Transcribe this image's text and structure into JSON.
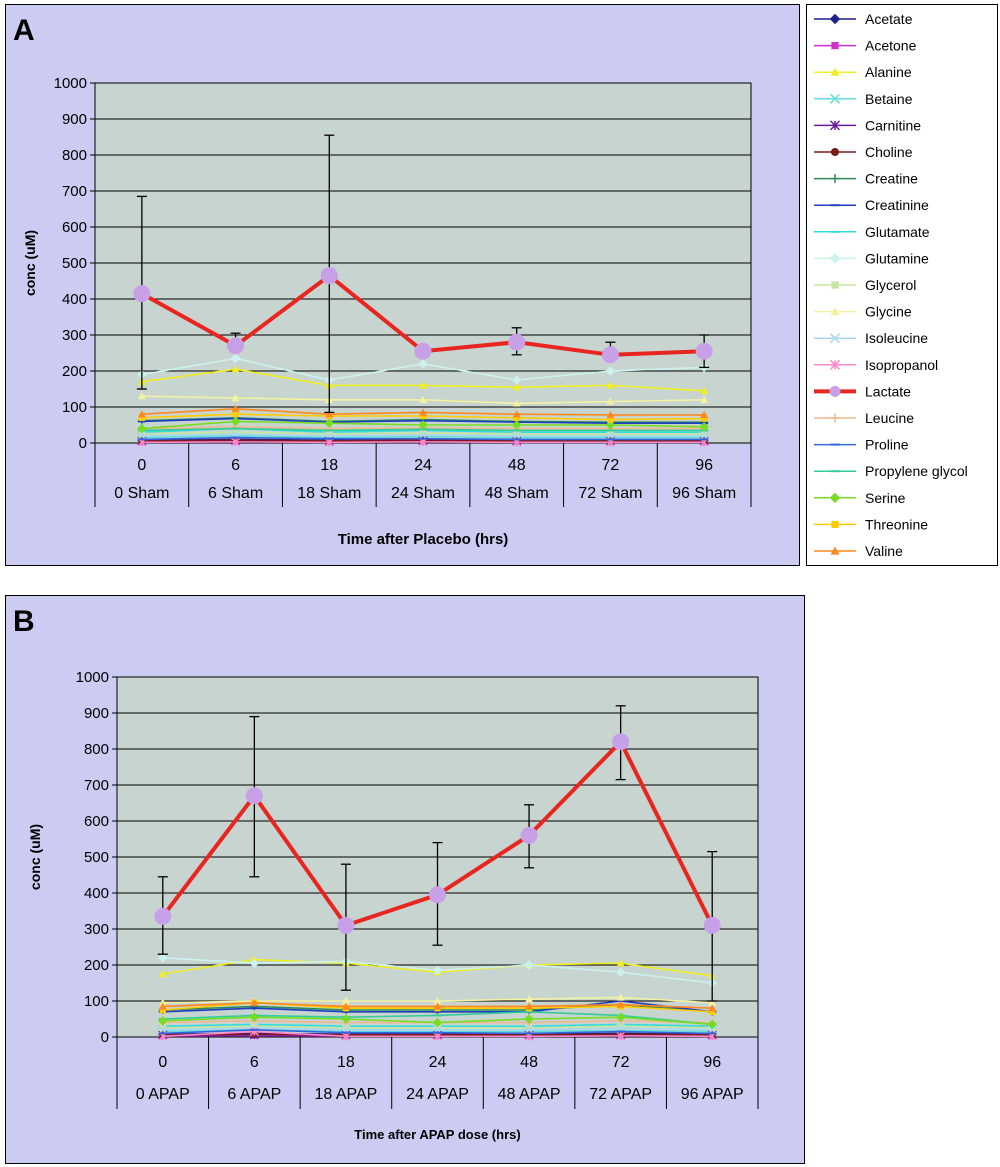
{
  "chart_data": [
    {
      "type": "line",
      "panel_label": "A",
      "ylabel": "conc (uM)",
      "xlabel": "Time after Placebo (hrs)",
      "ylim": [
        0,
        1000
      ],
      "y_ticks": [
        0,
        100,
        200,
        300,
        400,
        500,
        600,
        700,
        800,
        900,
        1000
      ],
      "x": [
        "0",
        "6",
        "18",
        "24",
        "48",
        "72",
        "96"
      ],
      "x_group_labels": [
        "0 Sham",
        "6 Sham",
        "18 Sham",
        "24 Sham",
        "48 Sham",
        "72 Sham",
        "96 Sham"
      ],
      "grid": true,
      "series": [
        {
          "name": "Acetate",
          "values": [
            8,
            10,
            8,
            10,
            8,
            8,
            8
          ]
        },
        {
          "name": "Acetone",
          "values": [
            3,
            4,
            3,
            4,
            3,
            3,
            3
          ]
        },
        {
          "name": "Alanine",
          "values": [
            170,
            205,
            160,
            160,
            155,
            160,
            145
          ]
        },
        {
          "name": "Betaine",
          "values": [
            15,
            20,
            15,
            18,
            15,
            15,
            15
          ]
        },
        {
          "name": "Carnitine",
          "values": [
            5,
            6,
            5,
            6,
            5,
            5,
            5
          ]
        },
        {
          "name": "Choline",
          "values": [
            6,
            8,
            6,
            8,
            6,
            6,
            6
          ]
        },
        {
          "name": "Creatine",
          "values": [
            62,
            70,
            60,
            65,
            60,
            58,
            58
          ]
        },
        {
          "name": "Creatinine",
          "values": [
            60,
            68,
            58,
            62,
            58,
            55,
            55
          ]
        },
        {
          "name": "Glutamate",
          "values": [
            30,
            40,
            30,
            35,
            30,
            30,
            30
          ]
        },
        {
          "name": "Glutamine",
          "values": [
            190,
            235,
            175,
            220,
            175,
            200,
            210
          ]
        },
        {
          "name": "Glycerol",
          "values": [
            25,
            30,
            25,
            28,
            25,
            25,
            25
          ]
        },
        {
          "name": "Glycine",
          "values": [
            130,
            125,
            120,
            120,
            110,
            115,
            120
          ]
        },
        {
          "name": "Isoleucine",
          "values": [
            20,
            25,
            20,
            22,
            20,
            20,
            20
          ]
        },
        {
          "name": "Isopropanol",
          "values": [
            2,
            3,
            2,
            3,
            2,
            2,
            2
          ]
        },
        {
          "name": "Lactate",
          "values": [
            415,
            270,
            465,
            255,
            280,
            245,
            255
          ]
        },
        {
          "name": "Leucine",
          "values": [
            40,
            45,
            40,
            42,
            40,
            40,
            40
          ]
        },
        {
          "name": "Proline",
          "values": [
            10,
            15,
            12,
            12,
            10,
            10,
            10
          ]
        },
        {
          "name": "Propylene glycol",
          "values": [
            35,
            40,
            35,
            38,
            35,
            35,
            35
          ]
        },
        {
          "name": "Serine",
          "values": [
            40,
            60,
            55,
            50,
            50,
            50,
            45
          ]
        },
        {
          "name": "Threonine",
          "values": [
            70,
            80,
            75,
            75,
            70,
            65,
            68
          ]
        },
        {
          "name": "Valine",
          "values": [
            80,
            95,
            80,
            85,
            80,
            78,
            78
          ]
        }
      ],
      "lactate_error": [
        [
          150,
          685
        ],
        [
          265,
          305
        ],
        [
          85,
          855
        ],
        [
          245,
          265
        ],
        [
          245,
          320
        ],
        [
          235,
          280
        ],
        [
          210,
          300
        ]
      ]
    },
    {
      "type": "line",
      "panel_label": "B",
      "ylabel": "conc (uM)",
      "xlabel": "Time after APAP dose (hrs)",
      "ylim": [
        0,
        1000
      ],
      "y_ticks": [
        0,
        100,
        200,
        300,
        400,
        500,
        600,
        700,
        800,
        900,
        1000
      ],
      "x": [
        "0",
        "6",
        "18",
        "24",
        "48",
        "72",
        "96"
      ],
      "x_group_labels": [
        "0 APAP",
        "6 APAP",
        "18 APAP",
        "24 APAP",
        "48 APAP",
        "72 APAP",
        "96 APAP"
      ],
      "grid": true,
      "series": [
        {
          "name": "Acetate",
          "values": [
            8,
            10,
            8,
            8,
            8,
            10,
            8
          ]
        },
        {
          "name": "Acetone",
          "values": [
            3,
            4,
            3,
            3,
            3,
            4,
            3
          ]
        },
        {
          "name": "Alanine",
          "values": [
            175,
            215,
            205,
            180,
            200,
            205,
            170
          ]
        },
        {
          "name": "Betaine",
          "values": [
            15,
            20,
            15,
            15,
            15,
            18,
            15
          ]
        },
        {
          "name": "Carnitine",
          "values": [
            5,
            6,
            5,
            5,
            5,
            6,
            5
          ]
        },
        {
          "name": "Choline",
          "values": [
            6,
            8,
            6,
            6,
            6,
            8,
            6
          ]
        },
        {
          "name": "Creatine",
          "values": [
            75,
            85,
            75,
            75,
            75,
            90,
            70
          ]
        },
        {
          "name": "Creatinine",
          "values": [
            70,
            80,
            70,
            70,
            70,
            100,
            70
          ]
        },
        {
          "name": "Glutamate",
          "values": [
            30,
            35,
            30,
            30,
            30,
            35,
            30
          ]
        },
        {
          "name": "Glutamine",
          "values": [
            220,
            205,
            210,
            185,
            200,
            180,
            150
          ]
        },
        {
          "name": "Glycerol",
          "values": [
            25,
            30,
            25,
            25,
            25,
            30,
            25
          ]
        },
        {
          "name": "Glycine",
          "values": [
            95,
            100,
            100,
            100,
            105,
            110,
            95
          ]
        },
        {
          "name": "Isoleucine",
          "values": [
            20,
            25,
            20,
            20,
            20,
            25,
            20
          ]
        },
        {
          "name": "Isopropanol",
          "values": [
            2,
            15,
            2,
            2,
            2,
            3,
            2
          ]
        },
        {
          "name": "Lactate",
          "values": [
            335,
            670,
            310,
            395,
            560,
            820,
            310
          ]
        },
        {
          "name": "Leucine",
          "values": [
            40,
            45,
            40,
            40,
            40,
            45,
            40
          ]
        },
        {
          "name": "Proline",
          "values": [
            10,
            20,
            12,
            12,
            10,
            15,
            10
          ]
        },
        {
          "name": "Propylene glycol",
          "values": [
            50,
            60,
            55,
            60,
            70,
            60,
            35
          ]
        },
        {
          "name": "Serine",
          "values": [
            45,
            55,
            50,
            40,
            50,
            55,
            35
          ]
        },
        {
          "name": "Threonine",
          "values": [
            75,
            95,
            80,
            80,
            80,
            85,
            70
          ]
        },
        {
          "name": "Valine",
          "values": [
            85,
            95,
            85,
            85,
            85,
            90,
            80
          ]
        }
      ],
      "lactate_error": [
        [
          230,
          445
        ],
        [
          445,
          890
        ],
        [
          130,
          480
        ],
        [
          255,
          540
        ],
        [
          470,
          645
        ],
        [
          715,
          920
        ],
        [
          100,
          515
        ]
      ]
    }
  ],
  "legend": {
    "items": [
      {
        "name": "Acetate",
        "color": "#1f1f8c",
        "marker": "diamond"
      },
      {
        "name": "Acetone",
        "color": "#cc33cc",
        "marker": "square"
      },
      {
        "name": "Alanine",
        "color": "#eeee22",
        "marker": "triangle"
      },
      {
        "name": "Betaine",
        "color": "#66dddd",
        "marker": "x"
      },
      {
        "name": "Carnitine",
        "color": "#6a1b9a",
        "marker": "star"
      },
      {
        "name": "Choline",
        "color": "#7a1a1a",
        "marker": "circle"
      },
      {
        "name": "Creatine",
        "color": "#2e8b57",
        "marker": "plus"
      },
      {
        "name": "Creatinine",
        "color": "#1f3fbf",
        "marker": "dash"
      },
      {
        "name": "Glutamate",
        "color": "#33dddd",
        "marker": "dash"
      },
      {
        "name": "Glutamine",
        "color": "#ccf2f0",
        "marker": "diamond"
      },
      {
        "name": "Glycerol",
        "color": "#c8e6a0",
        "marker": "square"
      },
      {
        "name": "Glycine",
        "color": "#f2f2a0",
        "marker": "triangle"
      },
      {
        "name": "Isoleucine",
        "color": "#a8d8f0",
        "marker": "x"
      },
      {
        "name": "Isopropanol",
        "color": "#ff88cc",
        "marker": "star"
      },
      {
        "name": "Lactate",
        "color": "#e8251e",
        "marker": "circle"
      },
      {
        "name": "Leucine",
        "color": "#f0b890",
        "marker": "plus"
      },
      {
        "name": "Proline",
        "color": "#3366dd",
        "marker": "dash"
      },
      {
        "name": "Propylene glycol",
        "color": "#33cc99",
        "marker": "dash"
      },
      {
        "name": "Serine",
        "color": "#77dd22",
        "marker": "diamond"
      },
      {
        "name": "Threonine",
        "color": "#ffcc00",
        "marker": "square"
      },
      {
        "name": "Valine",
        "color": "#ff8822",
        "marker": "triangle"
      }
    ],
    "lactate_marker_color": "#c8a0e8"
  },
  "colors": {
    "panel_bg": "#ccccf2",
    "plot_bg": "#c8d4d0",
    "grid": "#000000",
    "border": "#000000"
  }
}
